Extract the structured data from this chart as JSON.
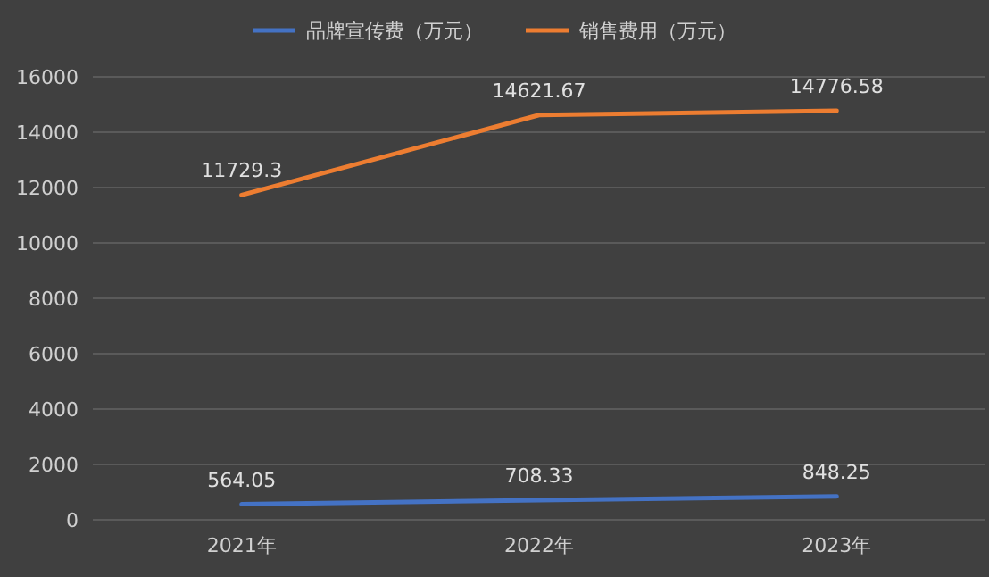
{
  "chart_data": {
    "type": "line",
    "categories": [
      "2021年",
      "2022年",
      "2023年"
    ],
    "series": [
      {
        "name": "品牌宣传费（万元）",
        "color": "#4472c4",
        "values": [
          564.05,
          708.33,
          848.25
        ]
      },
      {
        "name": "销售费用（万元）",
        "color": "#ed7d31",
        "values": [
          11729.3,
          14621.67,
          14776.58
        ]
      }
    ],
    "ylim": [
      0,
      16000
    ],
    "yticks": [
      0,
      2000,
      4000,
      6000,
      8000,
      10000,
      12000,
      14000,
      16000
    ],
    "grid": "y",
    "legend": "top",
    "data_labels": true,
    "marker": "none",
    "line_style": "solid"
  }
}
